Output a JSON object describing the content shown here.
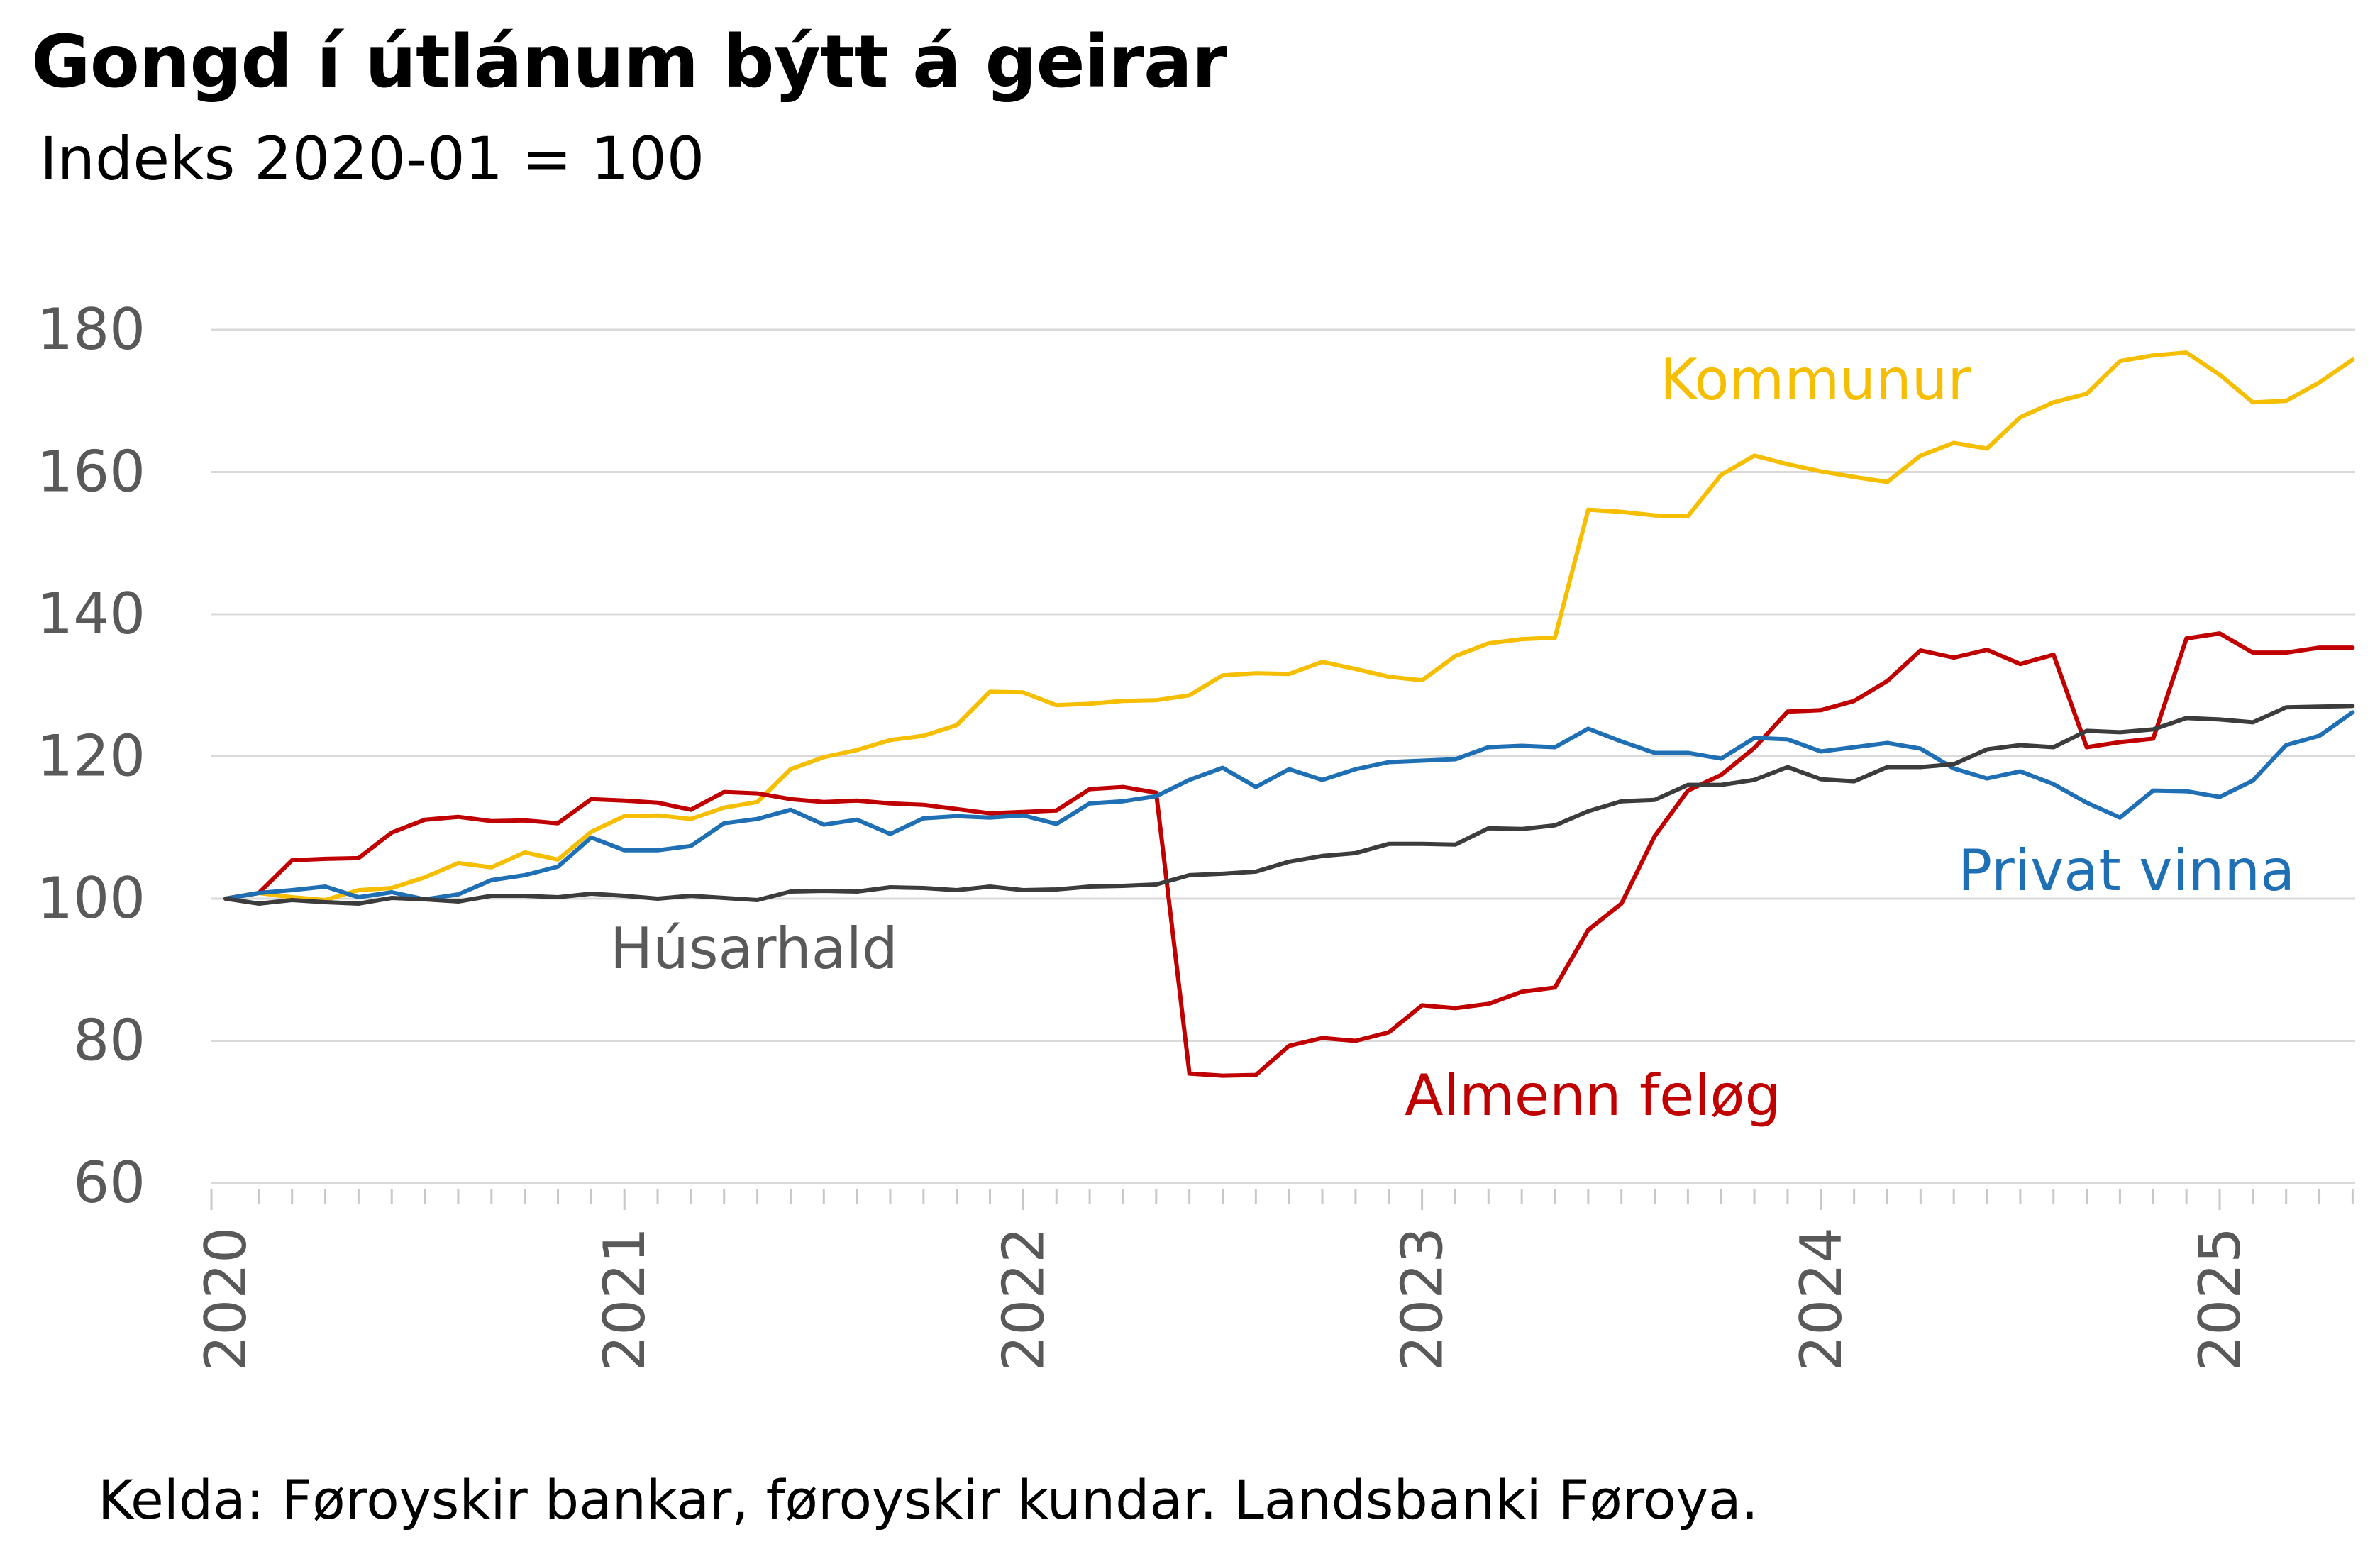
{
  "title": "Gongd í útlánum býtt á geirar",
  "subtitle": "Indeks 2020-01 = 100",
  "source": "Kelda: Føroyskir bankar, føroyskir kundar. Landsbanki Føroya.",
  "chart_data": {
    "type": "line",
    "title": "Gongd í útlánum býtt á geirar",
    "subtitle": "Indeks 2020-01 = 100",
    "xlabel": "",
    "ylabel": "",
    "ylim": [
      60,
      180
    ],
    "yticks": [
      60,
      80,
      100,
      120,
      140,
      160,
      180
    ],
    "xticks": [
      "2020",
      "2021",
      "2022",
      "2023",
      "2024",
      "2025"
    ],
    "x_start": "2020-01",
    "x_end": "2025-05",
    "grid": true,
    "legend": "inline-labels",
    "series": [
      {
        "name": "Kommunur",
        "color": "#f5be00",
        "values": [
          100,
          100.8,
          100.2,
          99.8,
          101.2,
          101.5,
          103,
          105,
          104.4,
          106.5,
          105.5,
          109.4,
          111.6,
          111.7,
          111.2,
          112.8,
          113.6,
          118.2,
          119.9,
          120.9,
          122.3,
          122.9,
          124.4,
          129.1,
          129,
          127.2,
          127.4,
          127.8,
          127.9,
          128.6,
          131.4,
          131.7,
          131.6,
          133.3,
          132.3,
          131.2,
          130.7,
          134.1,
          135.9,
          136.5,
          136.7,
          154.7,
          154.4,
          153.9,
          153.8,
          159.6,
          162.3,
          161.1,
          160.1,
          159.3,
          158.6,
          162.3,
          164.1,
          163.3,
          167.7,
          169.8,
          171,
          175.6,
          176.4,
          176.8,
          173.7,
          169.8,
          170,
          172.6,
          175.8
        ]
      },
      {
        "name": "Almenn feløg",
        "color": "#c00000",
        "values": [
          100,
          100.8,
          105.4,
          105.6,
          105.7,
          109.3,
          111.1,
          111.5,
          110.9,
          111,
          110.6,
          114,
          113.8,
          113.5,
          112.5,
          115,
          114.8,
          114,
          113.6,
          113.8,
          113.4,
          113.2,
          112.6,
          112,
          112.2,
          112.4,
          115.4,
          115.7,
          114.9,
          75.4,
          75.1,
          75.2,
          79.3,
          80.4,
          80,
          81.2,
          85,
          84.6,
          85.2,
          86.9,
          87.5,
          95.6,
          99.3,
          108.8,
          115.2,
          117.4,
          121.2,
          126.3,
          126.5,
          127.8,
          130.6,
          134.9,
          133.9,
          135,
          133,
          134.3,
          121.3,
          122,
          122.5,
          136.6,
          137.3,
          134.6,
          134.6,
          135.3,
          135.3
        ]
      },
      {
        "name": "Privat vinna",
        "color": "#1f6fb4",
        "values": [
          100,
          100.8,
          101.2,
          101.7,
          100.2,
          100.9,
          99.9,
          100.6,
          102.6,
          103.3,
          104.5,
          108.6,
          106.8,
          106.8,
          107.4,
          110.6,
          111.2,
          112.5,
          110.4,
          111.1,
          109.1,
          111.3,
          111.6,
          111.4,
          111.7,
          110.5,
          113.4,
          113.7,
          114.4,
          116.7,
          118.4,
          115.7,
          118.2,
          116.7,
          118.2,
          119.2,
          119.4,
          119.6,
          121.3,
          121.5,
          121.3,
          123.9,
          122.1,
          120.5,
          120.5,
          119.7,
          122.6,
          122.4,
          120.7,
          121.3,
          121.9,
          121.1,
          118.3,
          116.9,
          117.9,
          116.1,
          113.5,
          111.4,
          115.2,
          115.1,
          114.3,
          116.6,
          121.6,
          122.9,
          126.2
        ]
      },
      {
        "name": "Húsarhald",
        "color": "#3c3c3c",
        "values": [
          100,
          99.3,
          99.8,
          99.5,
          99.3,
          100.1,
          99.9,
          99.6,
          100.4,
          100.4,
          100.2,
          100.7,
          100.4,
          100,
          100.4,
          100.1,
          99.8,
          101,
          101.1,
          101,
          101.6,
          101.5,
          101.2,
          101.7,
          101.2,
          101.3,
          101.7,
          101.8,
          102,
          103.3,
          103.5,
          103.8,
          105.2,
          106,
          106.4,
          107.7,
          107.7,
          107.6,
          109.9,
          109.8,
          110.3,
          112.3,
          113.7,
          113.9,
          116,
          116,
          116.7,
          118.5,
          116.8,
          116.5,
          118.5,
          118.5,
          118.9,
          121,
          121.6,
          121.3,
          123.6,
          123.4,
          123.8,
          125.4,
          125.2,
          124.8,
          126.9,
          127,
          127.1
        ]
      }
    ],
    "annotations": [
      {
        "text": "Kommunur",
        "series": "Kommunur"
      },
      {
        "text": "Almenn feløg",
        "series": "Almenn feløg"
      },
      {
        "text": "Privat vinna",
        "series": "Privat vinna"
      },
      {
        "text": "Húsarhald",
        "series": "Húsarhald"
      }
    ]
  }
}
